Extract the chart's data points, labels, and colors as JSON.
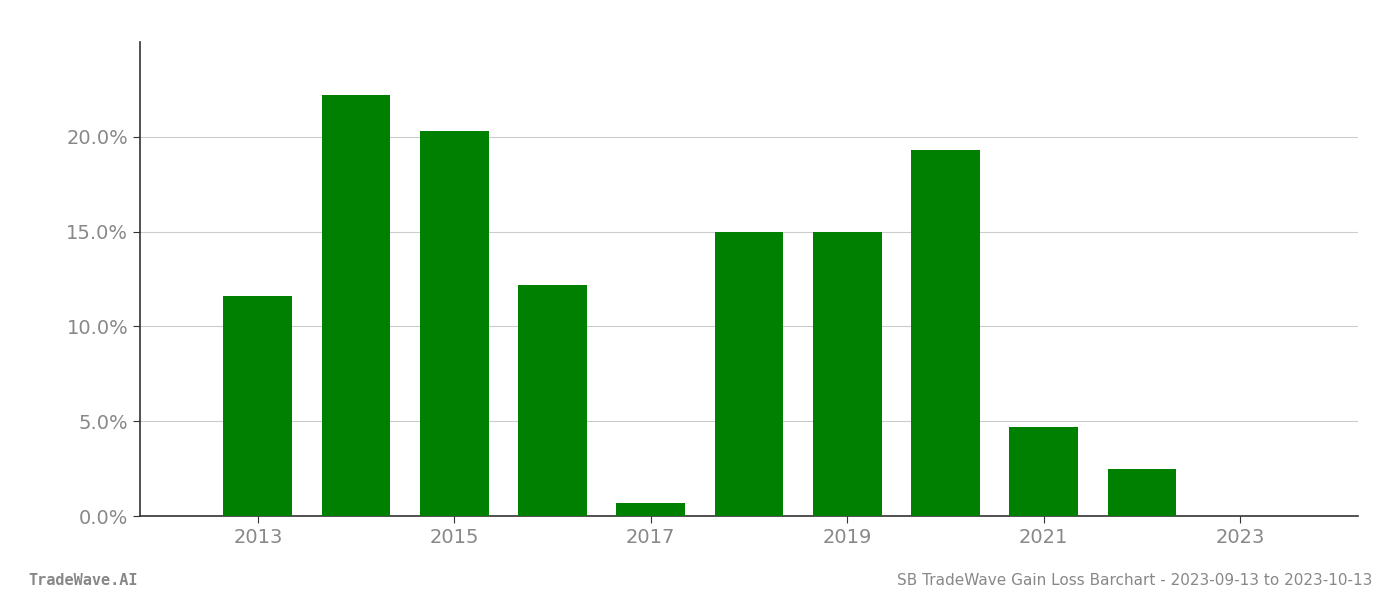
{
  "years": [
    2013,
    2014,
    2015,
    2016,
    2017,
    2018,
    2019,
    2020,
    2021,
    2022,
    2023
  ],
  "values": [
    0.116,
    0.222,
    0.203,
    0.122,
    0.007,
    0.15,
    0.15,
    0.193,
    0.047,
    0.025,
    0.0
  ],
  "bar_color": "#008000",
  "background_color": "#ffffff",
  "ylim": [
    0,
    0.25
  ],
  "yticks": [
    0.0,
    0.05,
    0.1,
    0.15,
    0.2
  ],
  "grid_color": "#cccccc",
  "spine_color": "#333333",
  "tick_label_color": "#888888",
  "footer_left": "TradeWave.AI",
  "footer_right": "SB TradeWave Gain Loss Barchart - 2023-09-13 to 2023-10-13",
  "footer_color": "#888888",
  "bar_width": 0.7,
  "xlim_left": 2011.8,
  "xlim_right": 2024.2,
  "xticks": [
    2013,
    2015,
    2017,
    2019,
    2021,
    2023
  ],
  "tick_fontsize": 14,
  "footer_fontsize": 11
}
